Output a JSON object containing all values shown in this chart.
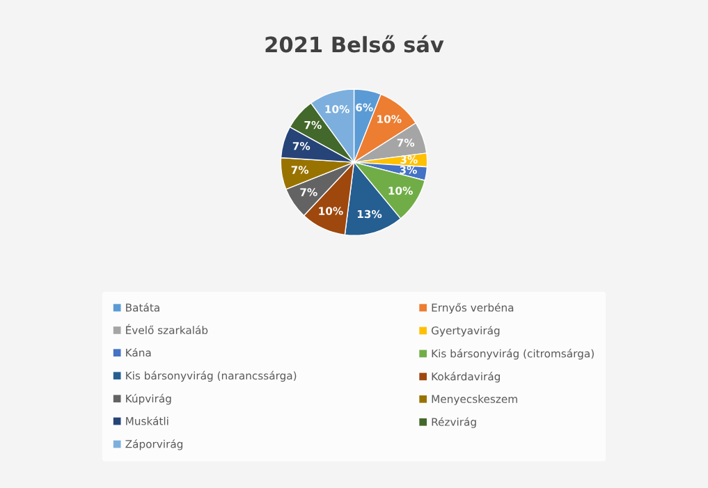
{
  "chart_data": {
    "type": "pie",
    "title": "2021 Belső sáv",
    "categories": [
      "Batáta",
      "Ernyős verbéna",
      "Évelő szarkaláb",
      "Gyertyavirág",
      "Kána",
      "Kis bársonyvirág (citromsárga)",
      "Kis bársonyvirág (narancssárga)",
      "Kokárdavirág",
      "Kúpvirág",
      "Menyecskeszem",
      "Muskátli",
      "Rézvirág",
      "Záporvirág"
    ],
    "values": [
      6,
      10,
      7,
      3,
      3,
      10,
      13,
      10,
      7,
      7,
      7,
      7,
      10
    ],
    "colors": [
      "#5b9bd5",
      "#ed7d31",
      "#a5a5a5",
      "#ffc000",
      "#4472c4",
      "#70ad47",
      "#255e91",
      "#9e480e",
      "#636363",
      "#997300",
      "#264478",
      "#43682b",
      "#7cafdd"
    ],
    "value_labels": [
      "6%",
      "10%",
      "7%",
      "3%",
      "3%",
      "10%",
      "13%",
      "10%",
      "7%",
      "7%",
      "7%",
      "7%",
      "10%"
    ],
    "legend": "bottom"
  }
}
